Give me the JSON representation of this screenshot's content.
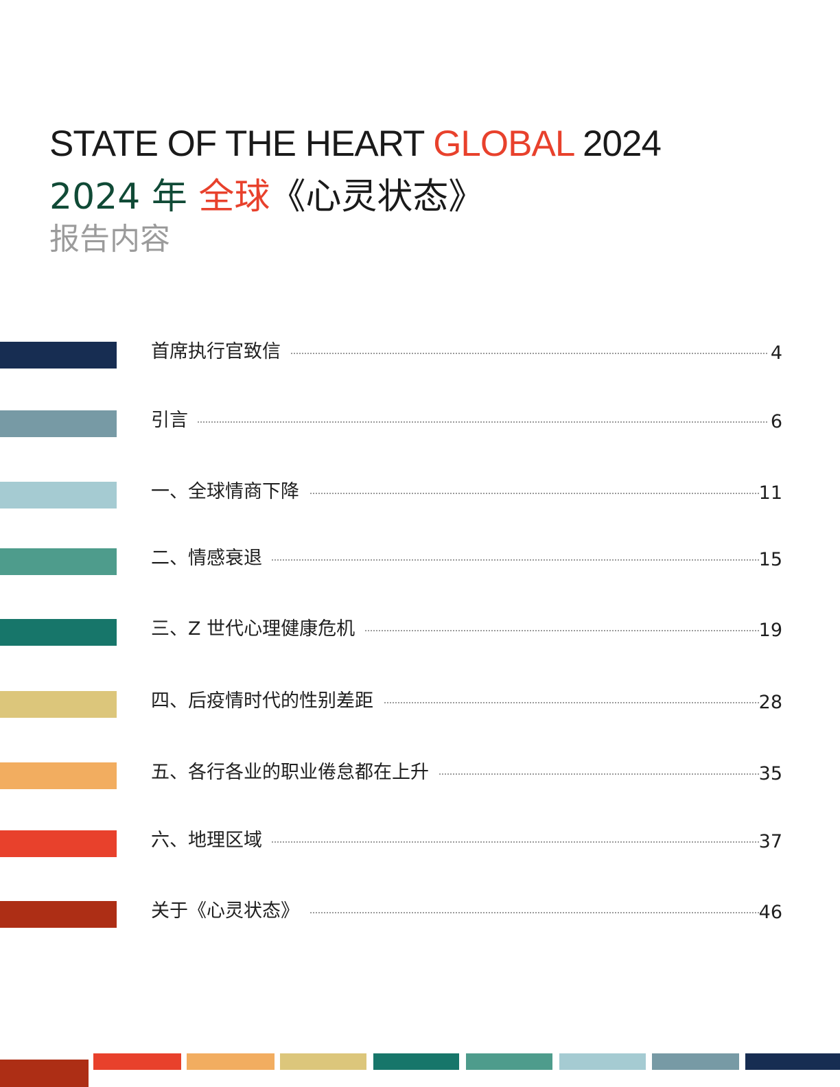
{
  "title": {
    "en_part1": "STATE OF THE HEART ",
    "en_accent": "GLOBAL",
    "en_part2": " 2024",
    "zh_year": "2024 年 ",
    "zh_accent": "全球",
    "zh_rest": "《心灵状态》",
    "subtitle": "报告内容"
  },
  "toc": [
    {
      "label": "首席执行官致信",
      "page": "4",
      "color": "#172d52"
    },
    {
      "label": "引言",
      "page": "6",
      "color": "#779aa5"
    },
    {
      "label": "一、全球情商下降",
      "page": "11",
      "color": "#a5cbd2"
    },
    {
      "label": "二、情感衰退",
      "page": "15",
      "color": "#4e9c8c"
    },
    {
      "label": "三、Z 世代心理健康危机",
      "page": "19",
      "color": "#17766a"
    },
    {
      "label": "四、后疫情时代的性别差距",
      "page": "28",
      "color": "#dcc67b"
    },
    {
      "label": "五、各行各业的职业倦怠都在上升",
      "page": "35",
      "color": "#f2ad60"
    },
    {
      "label": "六、地理区域",
      "page": "37",
      "color": "#e8412c"
    },
    {
      "label": "关于《心灵状态》",
      "page": "46",
      "color": "#ad2e15"
    }
  ],
  "footer_colors": [
    "#ad2e15",
    "#e8412c",
    "#f2ad60",
    "#dcc67b",
    "#17766a",
    "#4e9c8c",
    "#a5cbd2",
    "#779aa5",
    "#172d52"
  ]
}
